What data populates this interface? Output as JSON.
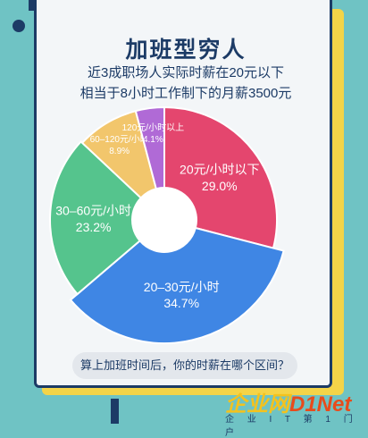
{
  "title": "加班型穷人",
  "subtitle_line1": "近3成职场人实际时薪在20元以下",
  "subtitle_line2": "相当于8小时工作制下的月薪3500元",
  "question": "算上加班时间后，你的时薪在哪个区间？",
  "watermark": {
    "brand": "企业网",
    "net": "D1Net",
    "tagline": "企 业 I T 第 1 门 户"
  },
  "chart_data": {
    "type": "pie",
    "donut": true,
    "title": "",
    "slices": [
      {
        "label": "20元/小时以下",
        "value": 29.0,
        "pct_label": "29.0%",
        "color": "#e4466e",
        "label_color": "#ffffff"
      },
      {
        "label": "20–30元/小时",
        "value": 34.7,
        "pct_label": "34.7%",
        "color": "#3f86e4",
        "label_color": "#ffffff"
      },
      {
        "label": "30–60元/小时",
        "value": 23.2,
        "pct_label": "23.2%",
        "color": "#55c48d",
        "label_color": "#ffffff"
      },
      {
        "label": "60–120元/小时",
        "value": 8.9,
        "pct_label": "8.9%",
        "color": "#f2c66c",
        "label_color": "#ffffff"
      },
      {
        "label": "120元/小时以上",
        "value": 4.1,
        "pct_label": "4.1%",
        "color": "#b06ad6",
        "label_color": "#ffffff"
      }
    ]
  }
}
